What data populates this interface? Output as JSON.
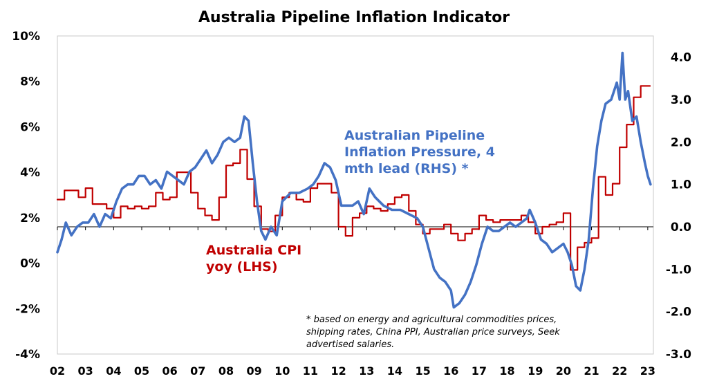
{
  "chart_data": {
    "type": "line",
    "title": "Australia Pipeline Inflation Indicator",
    "x_ticks": [
      "02",
      "03",
      "04",
      "05",
      "06",
      "07",
      "08",
      "09",
      "10",
      "11",
      "12",
      "13",
      "14",
      "15",
      "16",
      "17",
      "18",
      "19",
      "20",
      "21",
      "22",
      "23"
    ],
    "x_range": [
      2002,
      2023.2
    ],
    "y_left": {
      "range": [
        -4,
        10
      ],
      "ticks": [
        "-4%",
        "-2%",
        "0%",
        "2%",
        "4%",
        "6%",
        "8%",
        "10%"
      ]
    },
    "y_right": {
      "range": [
        -3,
        4.5
      ],
      "ticks": [
        "-3.0",
        "-2.0",
        "-1.0",
        "0.0",
        "1.0",
        "2.0",
        "3.0",
        "4.0"
      ]
    },
    "series": [
      {
        "name": "Australia CPI yoy (LHS)",
        "label_lines": [
          "Australia CPI",
          "yoy (LHS)"
        ],
        "color": "#C00000",
        "axis": "left",
        "step": true,
        "x": [
          2002.0,
          2002.25,
          2002.5,
          2002.75,
          2003.0,
          2003.25,
          2003.5,
          2003.75,
          2004.0,
          2004.25,
          2004.5,
          2004.75,
          2005.0,
          2005.25,
          2005.5,
          2005.75,
          2006.0,
          2006.25,
          2006.5,
          2006.75,
          2007.0,
          2007.25,
          2007.5,
          2007.75,
          2008.0,
          2008.25,
          2008.5,
          2008.75,
          2009.0,
          2009.25,
          2009.5,
          2009.75,
          2010.0,
          2010.25,
          2010.5,
          2010.75,
          2011.0,
          2011.25,
          2011.5,
          2011.75,
          2012.0,
          2012.25,
          2012.5,
          2012.75,
          2013.0,
          2013.25,
          2013.5,
          2013.75,
          2014.0,
          2014.25,
          2014.5,
          2014.75,
          2015.0,
          2015.25,
          2015.5,
          2015.75,
          2016.0,
          2016.25,
          2016.5,
          2016.75,
          2017.0,
          2017.25,
          2017.5,
          2017.75,
          2018.0,
          2018.25,
          2018.5,
          2018.75,
          2019.0,
          2019.25,
          2019.5,
          2019.75,
          2020.0,
          2020.25,
          2020.5,
          2020.75,
          2021.0,
          2021.25,
          2021.5,
          2021.75,
          2022.0,
          2022.25,
          2022.5,
          2022.75,
          2023.0
        ],
        "values": [
          2.8,
          3.2,
          3.2,
          2.9,
          3.3,
          2.6,
          2.6,
          2.4,
          2.0,
          2.5,
          2.4,
          2.5,
          2.4,
          2.5,
          3.1,
          2.8,
          2.9,
          4.0,
          4.0,
          3.1,
          2.4,
          2.1,
          1.9,
          2.9,
          4.3,
          4.4,
          5.0,
          3.7,
          2.5,
          1.5,
          1.4,
          2.1,
          2.9,
          3.1,
          2.8,
          2.7,
          3.3,
          3.5,
          3.5,
          3.1,
          1.6,
          1.2,
          2.0,
          2.2,
          2.5,
          2.4,
          2.3,
          2.6,
          2.9,
          3.0,
          2.3,
          1.7,
          1.3,
          1.5,
          1.5,
          1.7,
          1.3,
          1.0,
          1.3,
          1.5,
          2.1,
          1.9,
          1.8,
          1.9,
          1.9,
          1.9,
          2.1,
          1.8,
          1.3,
          1.6,
          1.7,
          1.8,
          2.2,
          -0.3,
          0.7,
          0.9,
          1.1,
          3.8,
          3.0,
          3.5,
          5.1,
          6.1,
          7.3,
          7.8,
          7.8
        ]
      },
      {
        "name": "Australian Pipeline Inflation Pressure, 4 mth lead (RHS) *",
        "label_lines": [
          "Australian Pipeline",
          "Inflation Pressure, 4",
          "mth lead (RHS) *"
        ],
        "color": "#4472C4",
        "axis": "right",
        "step": false,
        "x": [
          2002.0,
          2002.15,
          2002.3,
          2002.5,
          2002.7,
          2002.9,
          2003.1,
          2003.3,
          2003.5,
          2003.7,
          2003.9,
          2004.1,
          2004.3,
          2004.5,
          2004.7,
          2004.9,
          2005.1,
          2005.3,
          2005.5,
          2005.7,
          2005.9,
          2006.1,
          2006.3,
          2006.5,
          2006.7,
          2006.9,
          2007.1,
          2007.3,
          2007.5,
          2007.7,
          2007.9,
          2008.1,
          2008.3,
          2008.5,
          2008.65,
          2008.8,
          2008.95,
          2009.1,
          2009.25,
          2009.4,
          2009.6,
          2009.8,
          2010.0,
          2010.3,
          2010.6,
          2010.9,
          2011.1,
          2011.3,
          2011.5,
          2011.7,
          2011.9,
          2012.1,
          2012.3,
          2012.5,
          2012.7,
          2012.9,
          2013.1,
          2013.3,
          2013.6,
          2013.9,
          2014.2,
          2014.5,
          2014.8,
          2015.0,
          2015.2,
          2015.4,
          2015.6,
          2015.8,
          2016.0,
          2016.1,
          2016.3,
          2016.5,
          2016.7,
          2016.9,
          2017.1,
          2017.3,
          2017.5,
          2017.7,
          2017.9,
          2018.1,
          2018.3,
          2018.5,
          2018.7,
          2018.8,
          2019.0,
          2019.2,
          2019.4,
          2019.6,
          2019.8,
          2020.0,
          2020.15,
          2020.3,
          2020.45,
          2020.6,
          2020.75,
          2020.9,
          2021.05,
          2021.2,
          2021.35,
          2021.5,
          2021.7,
          2021.9,
          2022.0,
          2022.1,
          2022.2,
          2022.3,
          2022.45,
          2022.6,
          2022.75,
          2022.9,
          2023.0,
          2023.1
        ],
        "values": [
          -0.6,
          -0.3,
          0.1,
          -0.2,
          0.0,
          0.1,
          0.1,
          0.3,
          0.0,
          0.3,
          0.2,
          0.6,
          0.9,
          1.0,
          1.0,
          1.2,
          1.2,
          1.0,
          1.1,
          0.9,
          1.3,
          1.2,
          1.1,
          1.0,
          1.3,
          1.4,
          1.6,
          1.8,
          1.5,
          1.7,
          2.0,
          2.1,
          2.0,
          2.1,
          2.6,
          2.5,
          1.5,
          0.6,
          -0.1,
          -0.3,
          0.0,
          -0.2,
          0.6,
          0.8,
          0.8,
          0.9,
          1.0,
          1.2,
          1.5,
          1.4,
          1.1,
          0.5,
          0.5,
          0.5,
          0.6,
          0.3,
          0.9,
          0.7,
          0.5,
          0.4,
          0.4,
          0.3,
          0.2,
          0.0,
          -0.5,
          -1.0,
          -1.2,
          -1.3,
          -1.5,
          -1.9,
          -1.8,
          -1.6,
          -1.3,
          -0.9,
          -0.4,
          0.0,
          -0.1,
          -0.1,
          0.0,
          0.1,
          0.0,
          0.1,
          0.2,
          0.4,
          0.1,
          -0.3,
          -0.4,
          -0.6,
          -0.5,
          -0.4,
          -0.6,
          -0.9,
          -1.4,
          -1.5,
          -1.0,
          -0.3,
          0.9,
          1.9,
          2.5,
          2.9,
          3.0,
          3.4,
          3.0,
          4.1,
          3.0,
          3.2,
          2.5,
          2.6,
          2.0,
          1.5,
          1.2,
          1.0
        ]
      }
    ],
    "annotation_lines": [
      "* based on energy and agricultural commodities prices,",
      "shipping rates, China PPI, Australian price surveys, Seek",
      "advertised salaries."
    ]
  }
}
